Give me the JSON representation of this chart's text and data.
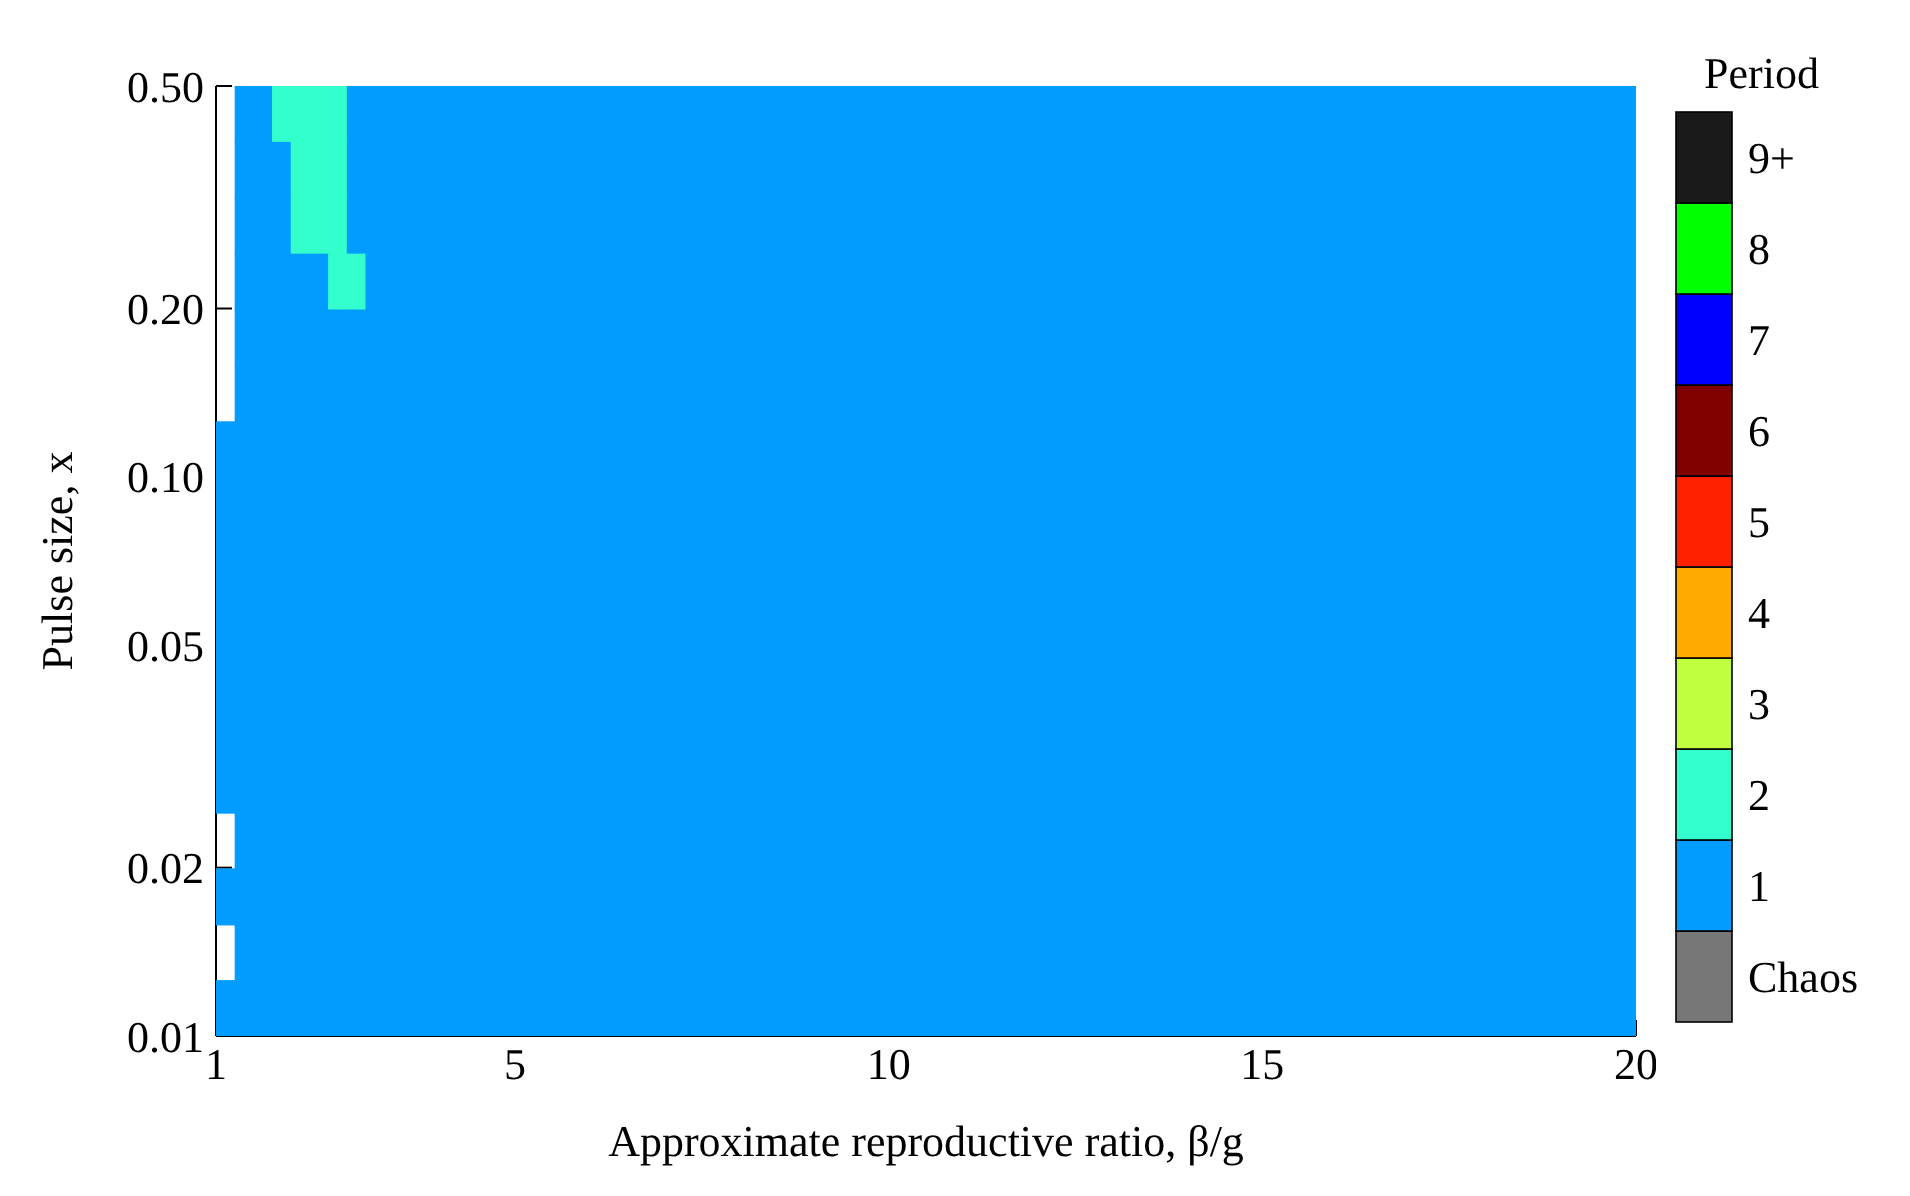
{
  "chart_data": {
    "type": "heatmap",
    "xlabel": "Approximate reproductive ratio, β/g",
    "ylabel": "Pulse size, x",
    "clabel": "Period",
    "xlim": [
      1,
      20
    ],
    "ylim": [
      0.01,
      0.5
    ],
    "log": "y",
    "xticks": [
      1,
      5,
      10,
      15,
      20
    ],
    "yticks": [
      0.01,
      0.02,
      0.05,
      {
        "value": 0.1,
        "label": "0.10"
      },
      {
        "value": 0.2,
        "label": "0.20"
      },
      {
        "value": 0.5,
        "label": "0.50"
      }
    ],
    "clim": [
      -0.5,
      9.5
    ],
    "cticks": [
      {
        "value": 0,
        "label": "Chaos"
      },
      1,
      2,
      3,
      4,
      5,
      6,
      7,
      8,
      {
        "value": 9,
        "label": "9+"
      }
    ],
    "colors": [
      "#777777",
      "#009cff",
      "#33ffcc",
      "#c0ff40",
      "#ffaa00",
      "#ff2000",
      "#800000",
      "#0000ff",
      "#00ff00",
      "#1a1a1a"
    ],
    "cells": [
      [
        null,
        1,
        1,
        2,
        2,
        2,
        2,
        1,
        1,
        1,
        1,
        1,
        1,
        1,
        1,
        1,
        1,
        1,
        1,
        1,
        1,
        1,
        1,
        1,
        1,
        1,
        1,
        1,
        1,
        1,
        1,
        1,
        1,
        1,
        1,
        1,
        1,
        1,
        1,
        1,
        1,
        1,
        1,
        1,
        1,
        1,
        1,
        1,
        1,
        1,
        1,
        1,
        1,
        1,
        1,
        1,
        1,
        1,
        1,
        1,
        1,
        1,
        1,
        1,
        1,
        1,
        1,
        1,
        1,
        1,
        1,
        1,
        1,
        1,
        1,
        1
      ],
      [
        null,
        1,
        1,
        1,
        2,
        2,
        2,
        1,
        1,
        1,
        1,
        1,
        1,
        1,
        1,
        1,
        1,
        1,
        1,
        1,
        1,
        1,
        1,
        1,
        1,
        1,
        1,
        1,
        1,
        1,
        1,
        1,
        1,
        1,
        1,
        1,
        1,
        1,
        1,
        1,
        1,
        1,
        1,
        1,
        1,
        1,
        1,
        1,
        1,
        1,
        1,
        1,
        1,
        1,
        1,
        1,
        1,
        1,
        1,
        1,
        1,
        1,
        1,
        1,
        1,
        1,
        1,
        1,
        1,
        1,
        1,
        1,
        1,
        1,
        1,
        1
      ],
      [
        null,
        1,
        1,
        1,
        2,
        2,
        2,
        1,
        1,
        1,
        1,
        1,
        1,
        1,
        1,
        1,
        1,
        1,
        1,
        1,
        1,
        1,
        1,
        1,
        1,
        1,
        1,
        1,
        1,
        1,
        1,
        1,
        1,
        1,
        1,
        1,
        1,
        1,
        1,
        1,
        1,
        1,
        1,
        1,
        1,
        1,
        1,
        1,
        1,
        1,
        1,
        1,
        1,
        1,
        1,
        1,
        1,
        1,
        1,
        1,
        1,
        1,
        1,
        1,
        1,
        1,
        1,
        1,
        1,
        1,
        1,
        1,
        1,
        1,
        1,
        1
      ],
      [
        null,
        1,
        1,
        1,
        1,
        1,
        2,
        2,
        1,
        1,
        1,
        1,
        1,
        1,
        1,
        1,
        1,
        1,
        1,
        1,
        1,
        1,
        1,
        1,
        1,
        1,
        1,
        1,
        1,
        1,
        1,
        1,
        1,
        1,
        1,
        1,
        1,
        1,
        1,
        1,
        1,
        1,
        1,
        1,
        1,
        1,
        1,
        1,
        1,
        1,
        1,
        1,
        1,
        1,
        1,
        1,
        1,
        1,
        1,
        1,
        1,
        1,
        1,
        1,
        1,
        1,
        1,
        1,
        1,
        1,
        1,
        1,
        1,
        1,
        1,
        1
      ],
      [
        null,
        1,
        1,
        1,
        1,
        1,
        1,
        1,
        1,
        1,
        1,
        1,
        1,
        1,
        1,
        1,
        1,
        1,
        1,
        1,
        1,
        1,
        1,
        1,
        1,
        1,
        1,
        1,
        1,
        1,
        1,
        1,
        1,
        1,
        1,
        1,
        1,
        1,
        1,
        1,
        1,
        1,
        1,
        1,
        1,
        1,
        1,
        1,
        1,
        1,
        1,
        1,
        1,
        1,
        1,
        1,
        1,
        1,
        1,
        1,
        1,
        1,
        1,
        1,
        1,
        1,
        1,
        1,
        1,
        1,
        1,
        1,
        1,
        1,
        1,
        1
      ],
      [
        null,
        1,
        1,
        1,
        1,
        1,
        1,
        1,
        1,
        1,
        1,
        1,
        1,
        1,
        1,
        1,
        1,
        1,
        1,
        1,
        1,
        1,
        1,
        1,
        1,
        1,
        1,
        1,
        1,
        1,
        1,
        1,
        1,
        1,
        1,
        1,
        1,
        1,
        1,
        1,
        1,
        1,
        1,
        1,
        1,
        1,
        1,
        1,
        1,
        1,
        1,
        1,
        1,
        1,
        1,
        1,
        1,
        1,
        1,
        1,
        1,
        1,
        1,
        1,
        1,
        1,
        1,
        1,
        1,
        1,
        1,
        1,
        1,
        1,
        1,
        1
      ],
      [
        1,
        1,
        1,
        1,
        1,
        1,
        1,
        1,
        1,
        1,
        1,
        1,
        1,
        1,
        1,
        1,
        1,
        1,
        1,
        1,
        1,
        1,
        1,
        1,
        1,
        1,
        1,
        1,
        1,
        1,
        1,
        1,
        1,
        1,
        1,
        1,
        1,
        1,
        1,
        1,
        1,
        1,
        1,
        1,
        1,
        1,
        1,
        1,
        1,
        1,
        1,
        1,
        1,
        1,
        1,
        1,
        1,
        1,
        1,
        1,
        1,
        1,
        1,
        1,
        1,
        1,
        1,
        1,
        1,
        1,
        1,
        1,
        1,
        1,
        1,
        1
      ],
      [
        1,
        1,
        1,
        1,
        1,
        1,
        1,
        1,
        1,
        1,
        1,
        1,
        1,
        1,
        1,
        1,
        1,
        1,
        1,
        1,
        1,
        1,
        1,
        1,
        1,
        1,
        1,
        1,
        1,
        1,
        1,
        1,
        1,
        1,
        1,
        1,
        1,
        1,
        1,
        1,
        1,
        1,
        1,
        1,
        1,
        1,
        1,
        1,
        1,
        1,
        1,
        1,
        1,
        1,
        1,
        1,
        1,
        1,
        1,
        1,
        1,
        1,
        1,
        1,
        1,
        1,
        1,
        1,
        1,
        1,
        1,
        1,
        1,
        1,
        1,
        1
      ],
      [
        1,
        1,
        1,
        1,
        1,
        1,
        1,
        1,
        1,
        1,
        1,
        1,
        1,
        1,
        1,
        1,
        1,
        1,
        1,
        1,
        1,
        1,
        1,
        1,
        1,
        1,
        1,
        1,
        1,
        1,
        1,
        1,
        1,
        1,
        1,
        1,
        1,
        1,
        1,
        1,
        1,
        1,
        1,
        1,
        1,
        1,
        1,
        1,
        1,
        1,
        1,
        1,
        1,
        1,
        1,
        1,
        1,
        1,
        1,
        1,
        1,
        1,
        1,
        1,
        1,
        1,
        1,
        1,
        1,
        1,
        1,
        1,
        1,
        1,
        1,
        1
      ],
      [
        1,
        1,
        1,
        1,
        1,
        1,
        1,
        1,
        1,
        1,
        1,
        1,
        1,
        1,
        1,
        1,
        1,
        1,
        1,
        1,
        1,
        1,
        1,
        1,
        1,
        1,
        1,
        1,
        1,
        1,
        1,
        1,
        1,
        1,
        1,
        1,
        1,
        1,
        1,
        1,
        1,
        1,
        1,
        1,
        1,
        1,
        1,
        1,
        1,
        1,
        1,
        1,
        1,
        1,
        1,
        1,
        1,
        1,
        1,
        1,
        1,
        1,
        1,
        1,
        1,
        1,
        1,
        1,
        1,
        1,
        1,
        1,
        1,
        1,
        1,
        1
      ],
      [
        1,
        1,
        1,
        1,
        1,
        1,
        1,
        1,
        1,
        1,
        1,
        1,
        1,
        1,
        1,
        1,
        1,
        1,
        1,
        1,
        1,
        1,
        1,
        1,
        1,
        1,
        1,
        1,
        1,
        1,
        1,
        1,
        1,
        1,
        1,
        1,
        1,
        1,
        1,
        1,
        1,
        1,
        1,
        1,
        1,
        1,
        1,
        1,
        1,
        1,
        1,
        1,
        1,
        1,
        1,
        1,
        1,
        1,
        1,
        1,
        1,
        1,
        1,
        1,
        1,
        1,
        1,
        1,
        1,
        1,
        1,
        1,
        1,
        1,
        1,
        1
      ],
      [
        1,
        1,
        1,
        1,
        1,
        1,
        1,
        1,
        1,
        1,
        1,
        1,
        1,
        1,
        1,
        1,
        1,
        1,
        1,
        1,
        1,
        1,
        1,
        1,
        1,
        1,
        1,
        1,
        1,
        1,
        1,
        1,
        1,
        1,
        1,
        1,
        1,
        1,
        1,
        1,
        1,
        1,
        1,
        1,
        1,
        1,
        1,
        1,
        1,
        1,
        1,
        1,
        1,
        1,
        1,
        1,
        1,
        1,
        1,
        1,
        1,
        1,
        1,
        1,
        1,
        1,
        1,
        1,
        1,
        1,
        1,
        1,
        1,
        1,
        1,
        1
      ],
      [
        1,
        1,
        1,
        1,
        1,
        1,
        1,
        1,
        1,
        1,
        1,
        1,
        1,
        1,
        1,
        1,
        1,
        1,
        1,
        1,
        1,
        1,
        1,
        1,
        1,
        1,
        1,
        1,
        1,
        1,
        1,
        1,
        1,
        1,
        1,
        1,
        1,
        1,
        1,
        1,
        1,
        1,
        1,
        1,
        1,
        1,
        1,
        1,
        1,
        1,
        1,
        1,
        1,
        1,
        1,
        1,
        1,
        1,
        1,
        1,
        1,
        1,
        1,
        1,
        1,
        1,
        1,
        1,
        1,
        1,
        1,
        1,
        1,
        1,
        1,
        1
      ],
      [
        null,
        1,
        1,
        1,
        1,
        1,
        1,
        1,
        1,
        1,
        1,
        1,
        1,
        1,
        1,
        1,
        1,
        1,
        1,
        1,
        1,
        1,
        1,
        1,
        1,
        1,
        1,
        1,
        1,
        1,
        1,
        1,
        1,
        1,
        1,
        1,
        1,
        1,
        1,
        1,
        1,
        1,
        1,
        1,
        1,
        1,
        1,
        1,
        1,
        1,
        1,
        1,
        1,
        1,
        1,
        1,
        1,
        1,
        1,
        1,
        1,
        1,
        1,
        1,
        1,
        1,
        1,
        1,
        1,
        1,
        1,
        1,
        1,
        1,
        1,
        1
      ],
      [
        1,
        1,
        1,
        1,
        1,
        1,
        1,
        1,
        1,
        1,
        1,
        1,
        1,
        1,
        1,
        1,
        1,
        1,
        1,
        1,
        1,
        1,
        1,
        1,
        1,
        1,
        1,
        1,
        1,
        1,
        1,
        1,
        1,
        1,
        1,
        1,
        1,
        1,
        1,
        1,
        1,
        1,
        1,
        1,
        1,
        1,
        1,
        1,
        1,
        1,
        1,
        1,
        1,
        1,
        1,
        1,
        1,
        1,
        1,
        1,
        1,
        1,
        1,
        1,
        1,
        1,
        1,
        1,
        1,
        1,
        1,
        1,
        1,
        1,
        1,
        1
      ],
      [
        null,
        1,
        1,
        1,
        1,
        1,
        1,
        1,
        1,
        1,
        1,
        1,
        1,
        1,
        1,
        1,
        1,
        1,
        1,
        1,
        1,
        1,
        1,
        1,
        1,
        1,
        1,
        1,
        1,
        1,
        1,
        1,
        1,
        1,
        1,
        1,
        1,
        1,
        1,
        1,
        1,
        1,
        1,
        1,
        1,
        1,
        1,
        1,
        1,
        1,
        1,
        1,
        1,
        1,
        1,
        1,
        1,
        1,
        1,
        1,
        1,
        1,
        1,
        1,
        1,
        1,
        1,
        1,
        1,
        1,
        1,
        1,
        1,
        1,
        1,
        1
      ],
      [
        1,
        1,
        1,
        1,
        1,
        1,
        1,
        1,
        1,
        1,
        1,
        1,
        1,
        1,
        1,
        1,
        1,
        1,
        1,
        1,
        1,
        1,
        1,
        1,
        1,
        1,
        1,
        1,
        1,
        1,
        1,
        1,
        1,
        1,
        1,
        1,
        1,
        1,
        1,
        1,
        1,
        1,
        1,
        1,
        1,
        1,
        1,
        1,
        1,
        1,
        1,
        1,
        1,
        1,
        1,
        1,
        1,
        1,
        1,
        1,
        1,
        1,
        1,
        1,
        1,
        1,
        1,
        1,
        1,
        1,
        1,
        1,
        1,
        1,
        1,
        1
      ]
    ]
  }
}
